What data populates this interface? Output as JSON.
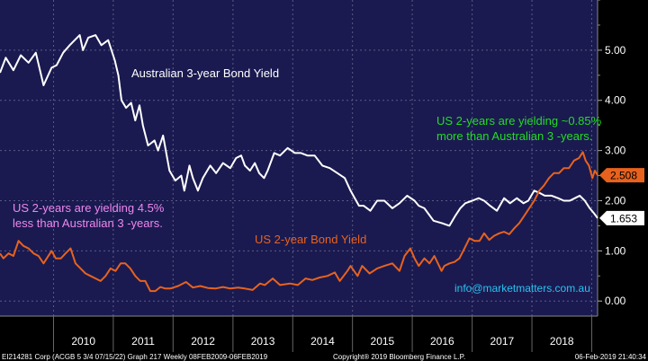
{
  "chart_data": {
    "type": "line",
    "x_range": [
      "2009-02-08",
      "2019-02-06"
    ],
    "ylim": [
      -0.3,
      6.0
    ],
    "y_ticks": [
      "0.00",
      "1.00",
      "2.00",
      "3.00",
      "4.00",
      "5.00"
    ],
    "y_tick_values": [
      0,
      1,
      2,
      3,
      4,
      5
    ],
    "x_labels": [
      "2010",
      "2011",
      "2012",
      "2013",
      "2014",
      "2015",
      "2016",
      "2017",
      "2018"
    ],
    "grid": true,
    "background": "#1a1a50",
    "series": [
      {
        "name": "Australian 3-year Bond Yield",
        "color": "#ffffff",
        "last_value": "1.653",
        "points": [
          [
            "2009-02-08",
            4.55
          ],
          [
            "2009-03-15",
            4.85
          ],
          [
            "2009-05-01",
            4.6
          ],
          [
            "2009-06-15",
            4.9
          ],
          [
            "2009-08-01",
            4.75
          ],
          [
            "2009-09-15",
            4.95
          ],
          [
            "2009-11-01",
            4.3
          ],
          [
            "2009-12-20",
            4.65
          ],
          [
            "2010-01-20",
            4.7
          ],
          [
            "2010-03-01",
            4.95
          ],
          [
            "2010-04-10",
            5.1
          ],
          [
            "2010-05-10",
            5.2
          ],
          [
            "2010-06-10",
            5.3
          ],
          [
            "2010-06-30",
            5.0
          ],
          [
            "2010-08-01",
            5.25
          ],
          [
            "2010-09-15",
            5.3
          ],
          [
            "2010-10-20",
            5.1
          ],
          [
            "2010-12-01",
            5.2
          ],
          [
            "2011-01-10",
            4.8
          ],
          [
            "2011-02-01",
            4.5
          ],
          [
            "2011-02-20",
            4.0
          ],
          [
            "2011-03-20",
            3.85
          ],
          [
            "2011-04-20",
            3.95
          ],
          [
            "2011-05-15",
            3.6
          ],
          [
            "2011-06-10",
            3.9
          ],
          [
            "2011-07-01",
            3.5
          ],
          [
            "2011-08-01",
            3.1
          ],
          [
            "2011-09-10",
            3.2
          ],
          [
            "2011-10-01",
            3.0
          ],
          [
            "2011-11-01",
            3.3
          ],
          [
            "2011-12-10",
            2.6
          ],
          [
            "2012-01-15",
            2.4
          ],
          [
            "2012-02-20",
            2.5
          ],
          [
            "2012-03-10",
            2.2
          ],
          [
            "2012-04-10",
            2.7
          ],
          [
            "2012-05-01",
            2.45
          ],
          [
            "2012-06-01",
            2.2
          ],
          [
            "2012-07-01",
            2.45
          ],
          [
            "2012-08-15",
            2.7
          ],
          [
            "2012-09-20",
            2.55
          ],
          [
            "2012-11-01",
            2.75
          ],
          [
            "2012-12-15",
            2.65
          ],
          [
            "2013-01-20",
            2.85
          ],
          [
            "2013-02-20",
            2.9
          ],
          [
            "2013-03-15",
            2.7
          ],
          [
            "2013-04-15",
            2.6
          ],
          [
            "2013-05-15",
            2.75
          ],
          [
            "2013-06-10",
            2.55
          ],
          [
            "2013-07-10",
            2.45
          ],
          [
            "2013-08-01",
            2.6
          ],
          [
            "2013-09-10",
            2.95
          ],
          [
            "2013-10-15",
            2.9
          ],
          [
            "2013-12-01",
            3.05
          ],
          [
            "2014-01-15",
            2.95
          ],
          [
            "2014-02-20",
            2.95
          ],
          [
            "2014-04-01",
            2.9
          ],
          [
            "2014-05-15",
            2.9
          ],
          [
            "2014-07-01",
            2.7
          ],
          [
            "2014-08-15",
            2.65
          ],
          [
            "2014-10-01",
            2.55
          ],
          [
            "2014-11-15",
            2.45
          ],
          [
            "2014-12-20",
            2.2
          ],
          [
            "2015-01-15",
            2.05
          ],
          [
            "2015-02-10",
            1.9
          ],
          [
            "2015-03-10",
            1.9
          ],
          [
            "2015-04-20",
            1.8
          ],
          [
            "2015-06-01",
            2.0
          ],
          [
            "2015-07-15",
            2.0
          ],
          [
            "2015-09-01",
            1.85
          ],
          [
            "2015-10-15",
            1.95
          ],
          [
            "2015-12-01",
            2.1
          ],
          [
            "2016-01-15",
            2.0
          ],
          [
            "2016-02-10",
            1.9
          ],
          [
            "2016-03-15",
            1.85
          ],
          [
            "2016-05-10",
            1.6
          ],
          [
            "2016-07-01",
            1.55
          ],
          [
            "2016-08-15",
            1.5
          ],
          [
            "2016-09-20",
            1.7
          ],
          [
            "2016-10-20",
            1.85
          ],
          [
            "2016-11-20",
            1.95
          ],
          [
            "2017-01-01",
            2.0
          ],
          [
            "2017-02-10",
            2.05
          ],
          [
            "2017-03-15",
            2.0
          ],
          [
            "2017-04-20",
            1.9
          ],
          [
            "2017-06-01",
            1.8
          ],
          [
            "2017-07-15",
            2.05
          ],
          [
            "2017-08-20",
            1.95
          ],
          [
            "2017-10-01",
            2.05
          ],
          [
            "2017-11-10",
            1.95
          ],
          [
            "2017-12-10",
            2.0
          ],
          [
            "2018-01-15",
            2.2
          ],
          [
            "2018-02-20",
            2.15
          ],
          [
            "2018-03-20",
            2.1
          ],
          [
            "2018-05-01",
            2.1
          ],
          [
            "2018-06-10",
            2.05
          ],
          [
            "2018-07-15",
            2.0
          ],
          [
            "2018-08-20",
            2.0
          ],
          [
            "2018-09-20",
            2.05
          ],
          [
            "2018-10-20",
            2.1
          ],
          [
            "2018-11-20",
            2.0
          ],
          [
            "2018-12-20",
            1.85
          ],
          [
            "2019-01-15",
            1.75
          ],
          [
            "2019-02-06",
            1.653
          ]
        ]
      },
      {
        "name": "US 2-year Bond Yield",
        "color": "#e8621e",
        "last_value": "2.508",
        "points": [
          [
            "2009-02-08",
            0.95
          ],
          [
            "2009-03-01",
            0.85
          ],
          [
            "2009-04-01",
            0.95
          ],
          [
            "2009-05-01",
            0.9
          ],
          [
            "2009-06-01",
            1.2
          ],
          [
            "2009-07-01",
            1.1
          ],
          [
            "2009-08-01",
            1.05
          ],
          [
            "2009-09-01",
            0.95
          ],
          [
            "2009-10-01",
            0.9
          ],
          [
            "2009-11-01",
            0.75
          ],
          [
            "2009-12-20",
            1.0
          ],
          [
            "2010-01-15",
            0.85
          ],
          [
            "2010-02-15",
            0.85
          ],
          [
            "2010-03-15",
            0.95
          ],
          [
            "2010-04-15",
            1.05
          ],
          [
            "2010-05-15",
            0.75
          ],
          [
            "2010-06-15",
            0.65
          ],
          [
            "2010-07-15",
            0.55
          ],
          [
            "2010-08-15",
            0.5
          ],
          [
            "2010-09-15",
            0.45
          ],
          [
            "2010-10-15",
            0.4
          ],
          [
            "2010-11-15",
            0.5
          ],
          [
            "2010-12-15",
            0.65
          ],
          [
            "2011-01-15",
            0.6
          ],
          [
            "2011-02-15",
            0.75
          ],
          [
            "2011-03-15",
            0.75
          ],
          [
            "2011-04-15",
            0.65
          ],
          [
            "2011-05-15",
            0.5
          ],
          [
            "2011-06-15",
            0.4
          ],
          [
            "2011-07-15",
            0.4
          ],
          [
            "2011-08-15",
            0.2
          ],
          [
            "2011-09-15",
            0.2
          ],
          [
            "2011-10-15",
            0.28
          ],
          [
            "2011-11-15",
            0.25
          ],
          [
            "2011-12-15",
            0.25
          ],
          [
            "2012-02-01",
            0.3
          ],
          [
            "2012-03-20",
            0.38
          ],
          [
            "2012-05-01",
            0.27
          ],
          [
            "2012-06-15",
            0.3
          ],
          [
            "2012-08-01",
            0.26
          ],
          [
            "2012-09-15",
            0.25
          ],
          [
            "2012-11-01",
            0.28
          ],
          [
            "2012-12-15",
            0.25
          ],
          [
            "2013-02-01",
            0.27
          ],
          [
            "2013-03-15",
            0.25
          ],
          [
            "2013-05-01",
            0.22
          ],
          [
            "2013-06-15",
            0.35
          ],
          [
            "2013-07-15",
            0.32
          ],
          [
            "2013-09-01",
            0.45
          ],
          [
            "2013-10-15",
            0.32
          ],
          [
            "2013-12-15",
            0.35
          ],
          [
            "2014-02-01",
            0.32
          ],
          [
            "2014-03-20",
            0.45
          ],
          [
            "2014-05-01",
            0.42
          ],
          [
            "2014-06-15",
            0.47
          ],
          [
            "2014-08-01",
            0.5
          ],
          [
            "2014-09-15",
            0.57
          ],
          [
            "2014-10-15",
            0.4
          ],
          [
            "2014-12-01",
            0.6
          ],
          [
            "2014-12-20",
            0.7
          ],
          [
            "2015-02-01",
            0.5
          ],
          [
            "2015-03-01",
            0.7
          ],
          [
            "2015-04-15",
            0.55
          ],
          [
            "2015-06-01",
            0.65
          ],
          [
            "2015-07-15",
            0.7
          ],
          [
            "2015-09-01",
            0.75
          ],
          [
            "2015-10-15",
            0.6
          ],
          [
            "2015-11-15",
            0.9
          ],
          [
            "2015-12-20",
            1.05
          ],
          [
            "2016-01-15",
            0.85
          ],
          [
            "2016-02-10",
            0.7
          ],
          [
            "2016-03-15",
            0.85
          ],
          [
            "2016-04-15",
            0.75
          ],
          [
            "2016-05-15",
            0.9
          ],
          [
            "2016-06-28",
            0.6
          ],
          [
            "2016-07-15",
            0.7
          ],
          [
            "2016-08-15",
            0.75
          ],
          [
            "2016-09-15",
            0.78
          ],
          [
            "2016-10-15",
            0.85
          ],
          [
            "2016-11-15",
            1.05
          ],
          [
            "2016-12-15",
            1.25
          ],
          [
            "2017-01-15",
            1.2
          ],
          [
            "2017-02-15",
            1.2
          ],
          [
            "2017-03-15",
            1.35
          ],
          [
            "2017-04-15",
            1.22
          ],
          [
            "2017-05-15",
            1.3
          ],
          [
            "2017-06-15",
            1.35
          ],
          [
            "2017-07-15",
            1.38
          ],
          [
            "2017-08-15",
            1.33
          ],
          [
            "2017-09-15",
            1.45
          ],
          [
            "2017-10-15",
            1.55
          ],
          [
            "2017-11-15",
            1.7
          ],
          [
            "2017-12-15",
            1.85
          ],
          [
            "2018-01-15",
            2.0
          ],
          [
            "2018-02-15",
            2.2
          ],
          [
            "2018-03-15",
            2.3
          ],
          [
            "2018-04-15",
            2.45
          ],
          [
            "2018-05-15",
            2.55
          ],
          [
            "2018-06-15",
            2.55
          ],
          [
            "2018-07-15",
            2.65
          ],
          [
            "2018-08-15",
            2.65
          ],
          [
            "2018-09-15",
            2.8
          ],
          [
            "2018-10-15",
            2.85
          ],
          [
            "2018-11-08",
            2.97
          ],
          [
            "2018-11-25",
            2.8
          ],
          [
            "2018-12-15",
            2.7
          ],
          [
            "2019-01-05",
            2.45
          ],
          [
            "2019-01-20",
            2.6
          ],
          [
            "2019-02-06",
            2.508
          ]
        ]
      }
    ],
    "annotations": [
      {
        "text": "Australian 3-year Bond Yield",
        "color": "#ffffff"
      },
      {
        "text": "US 2-year Bond Yield",
        "color": "#e8621e"
      },
      {
        "text": "US 2-years are yielding ~0.85%",
        "color": "#22dd22"
      },
      {
        "text": "more than Australian 3 -years.",
        "color": "#22dd22"
      },
      {
        "text": "US 2-years are yielding 4.5%",
        "color": "#ee88ee"
      },
      {
        "text": "less than Australian 3 -years.",
        "color": "#ee88ee"
      },
      {
        "text": "info@marketmatters.com.au",
        "color": "#29c3f2"
      }
    ]
  },
  "footer": {
    "left": "EI214281 Corp (ACGB 5 3/4 07/15/22) Graph 217  Weekly 08FEB2009-06FEB2019",
    "center": "Copyright® 2019 Bloomberg Finance L.P.",
    "right": "06-Feb-2019 21:40:34"
  }
}
